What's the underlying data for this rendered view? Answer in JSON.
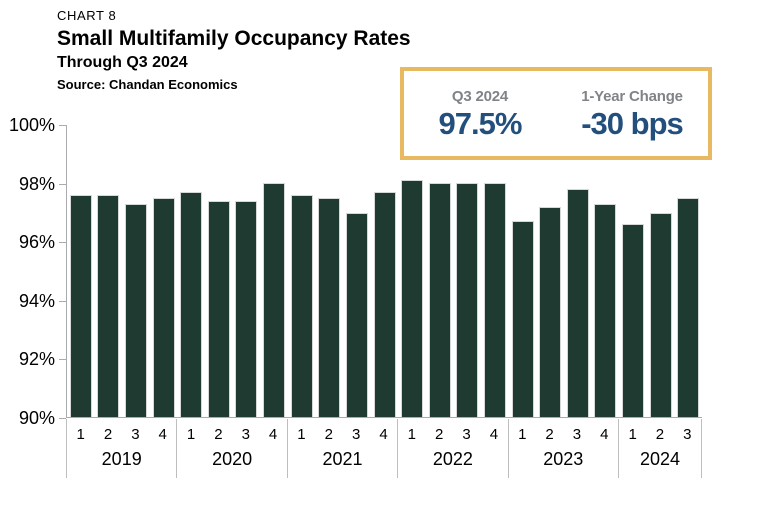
{
  "header": {
    "chart_label": "CHART 8",
    "title": "Small Multifamily Occupancy Rates",
    "subtitle": "Through Q3 2024",
    "source": "Source: Chandan Economics"
  },
  "callout": {
    "left_label": "Q3 2024",
    "left_value": "97.5%",
    "right_label": "1-Year Change",
    "right_value": "-30 bps",
    "border_color": "#e8b960",
    "label_color": "#808488",
    "value_color": "#234f7d"
  },
  "chart_data": {
    "type": "bar",
    "title": "Small Multifamily Occupancy Rates",
    "xlabel": "",
    "ylabel": "",
    "ylim": [
      90,
      100
    ],
    "ytick_labels": [
      "100%",
      "98%",
      "96%",
      "94%",
      "92%",
      "90%"
    ],
    "grid": false,
    "legend": false,
    "bar_color": "#1e3a31",
    "axis_color": "#a9abae",
    "separator_color": "#bcbec0",
    "groups": [
      {
        "year": "2019",
        "quarters": [
          "1",
          "2",
          "3",
          "4"
        ],
        "values": [
          97.6,
          97.6,
          97.3,
          97.5
        ]
      },
      {
        "year": "2020",
        "quarters": [
          "1",
          "2",
          "3",
          "4"
        ],
        "values": [
          97.7,
          97.4,
          97.4,
          98.0
        ]
      },
      {
        "year": "2021",
        "quarters": [
          "1",
          "2",
          "3",
          "4"
        ],
        "values": [
          97.6,
          97.5,
          97.0,
          97.7
        ]
      },
      {
        "year": "2022",
        "quarters": [
          "1",
          "2",
          "3",
          "4"
        ],
        "values": [
          98.1,
          98.0,
          98.0,
          98.0
        ]
      },
      {
        "year": "2023",
        "quarters": [
          "1",
          "2",
          "3",
          "4"
        ],
        "values": [
          96.7,
          97.2,
          97.8,
          97.3
        ]
      },
      {
        "year": "2024",
        "quarters": [
          "1",
          "2",
          "3"
        ],
        "values": [
          96.6,
          97.0,
          97.5
        ]
      }
    ]
  }
}
